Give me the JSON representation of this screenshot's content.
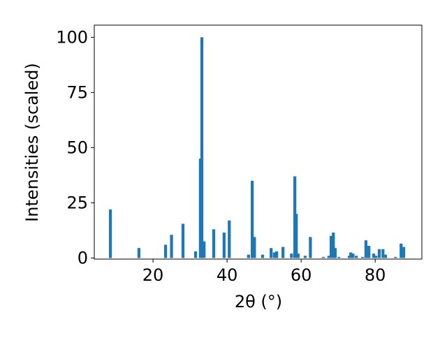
{
  "chart_data": {
    "type": "bar",
    "xlabel": "2θ (°)",
    "ylabel": "Intensities (scaled)",
    "color": "#1f77b4",
    "x": [
      8.5,
      16.2,
      23.4,
      25.0,
      28.1,
      31.5,
      32.8,
      33.2,
      33.8,
      36.4,
      39.2,
      40.6,
      45.8,
      46.8,
      47.4,
      49.6,
      51.9,
      52.8,
      53.4,
      55.1,
      57.4,
      58.3,
      58.7,
      59.2,
      61.1,
      62.5,
      66.0,
      67.5,
      68.1,
      68.7,
      69.2,
      70.2,
      73.0,
      73.4,
      74.0,
      74.9,
      76.6,
      77.5,
      78.3,
      79.6,
      80.2,
      81.1,
      82.1,
      82.8,
      85.5,
      87.0,
      87.7
    ],
    "values": [
      22,
      4.5,
      6,
      10.5,
      15.5,
      3,
      45,
      100,
      7.5,
      13,
      11.5,
      17,
      1.5,
      35,
      9.5,
      1.5,
      4.5,
      2.5,
      3,
      5,
      2,
      37,
      20,
      2,
      1,
      9.5,
      0.5,
      1,
      10,
      11.5,
      4.5,
      0.5,
      1,
      2.5,
      2,
      1,
      0.5,
      8,
      5.5,
      2,
      1,
      4,
      4,
      1.5,
      0.5,
      6.5,
      5
    ],
    "xlim": [
      4.15,
      92.6
    ],
    "ylim": [
      -0.5,
      105.5
    ],
    "xticks": [
      20,
      40,
      60,
      80
    ],
    "yticks": [
      0,
      25,
      50,
      75,
      100
    ]
  }
}
